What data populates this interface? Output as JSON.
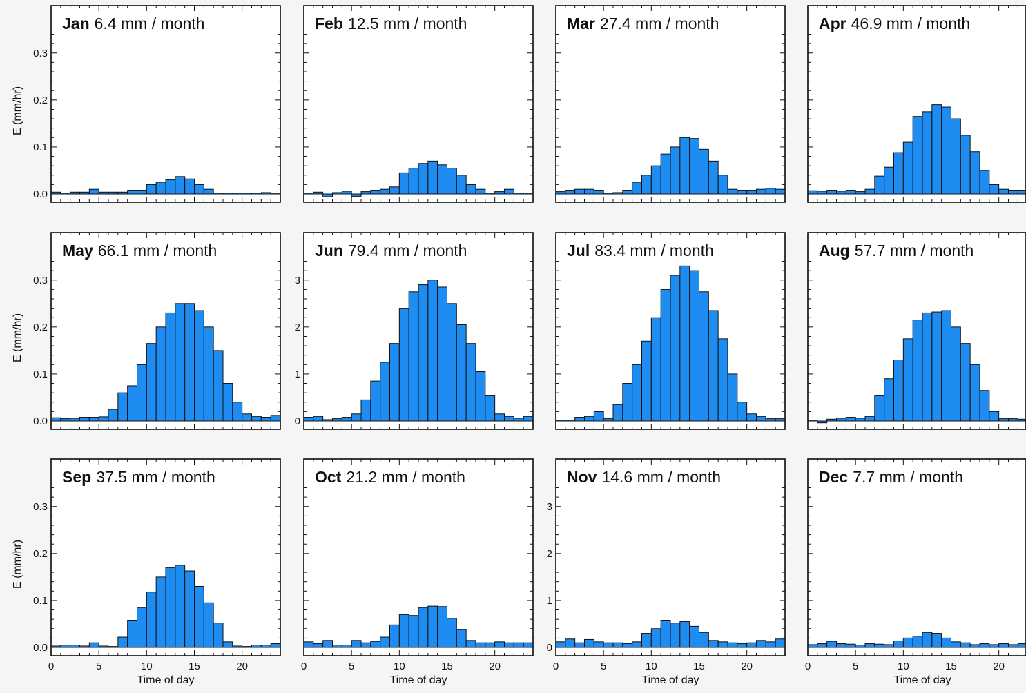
{
  "colors": {
    "bar": "#1e8cf0",
    "frame": "#111111",
    "panel_bg": "#ffffff"
  },
  "chart_data": [
    {
      "type": "bar",
      "month": "Jan",
      "total": "6.4 mm / month",
      "xlabel": "",
      "ylabel": "E (mm/hr)",
      "xlim": [
        0,
        24
      ],
      "ylim": [
        0,
        0.35
      ],
      "xticks": [],
      "yticks": [
        "0.0",
        "0.1",
        "0.2",
        "0.3"
      ],
      "values": [
        0.004,
        0.002,
        0.004,
        0.004,
        0.01,
        0.004,
        0.004,
        0.004,
        0.008,
        0.008,
        0.02,
        0.025,
        0.03,
        0.037,
        0.032,
        0.02,
        0.01,
        0.002,
        0.002,
        0.002,
        0.002,
        0.002,
        0.003,
        0.002
      ]
    },
    {
      "type": "bar",
      "month": "Feb",
      "total": "12.5 mm / month",
      "xlabel": "",
      "ylabel": "",
      "xlim": [
        0,
        24
      ],
      "ylim": [
        0,
        0.35
      ],
      "xticks": [],
      "yticks": [],
      "values": [
        0.002,
        0.004,
        -0.006,
        0.003,
        0.006,
        -0.005,
        0.005,
        0.008,
        0.01,
        0.015,
        0.045,
        0.055,
        0.065,
        0.07,
        0.062,
        0.055,
        0.04,
        0.02,
        0.01,
        0.002,
        0.005,
        0.01,
        0.002,
        0.002
      ]
    },
    {
      "type": "bar",
      "month": "Mar",
      "total": "27.4 mm / month",
      "xlabel": "",
      "ylabel": "",
      "xlim": [
        0,
        24
      ],
      "ylim": [
        0,
        0.35
      ],
      "xticks": [],
      "yticks": [],
      "values": [
        0.005,
        0.008,
        0.01,
        0.01,
        0.008,
        0.002,
        0.003,
        0.008,
        0.025,
        0.04,
        0.06,
        0.085,
        0.1,
        0.12,
        0.118,
        0.095,
        0.07,
        0.04,
        0.01,
        0.008,
        0.008,
        0.01,
        0.012,
        0.01
      ]
    },
    {
      "type": "bar",
      "month": "Apr",
      "total": "46.9 mm / month",
      "xlabel": "",
      "ylabel": "",
      "xlim": [
        0,
        24
      ],
      "ylim": [
        0,
        0.35
      ],
      "xticks": [],
      "yticks": [],
      "values": [
        0.007,
        0.006,
        0.008,
        0.006,
        0.008,
        0.005,
        0.01,
        0.038,
        0.057,
        0.088,
        0.11,
        0.165,
        0.175,
        0.19,
        0.185,
        0.16,
        0.125,
        0.09,
        0.05,
        0.02,
        0.01,
        0.008,
        0.008,
        0.006
      ]
    },
    {
      "type": "bar",
      "month": "May",
      "total": "66.1 mm / month",
      "xlabel": "",
      "ylabel": "E (mm/hr)",
      "xlim": [
        0,
        24
      ],
      "ylim": [
        0,
        0.35
      ],
      "xticks": [],
      "yticks": [
        "0.0",
        "0.1",
        "0.2",
        "0.3"
      ],
      "values": [
        0.007,
        0.005,
        0.006,
        0.008,
        0.008,
        0.009,
        0.025,
        0.06,
        0.075,
        0.12,
        0.165,
        0.2,
        0.23,
        0.25,
        0.25,
        0.235,
        0.2,
        0.15,
        0.08,
        0.04,
        0.015,
        0.01,
        0.008,
        0.012
      ]
    },
    {
      "type": "bar",
      "month": "Jun",
      "total": "79.4 mm / month",
      "xlabel": "",
      "ylabel": "",
      "xlim": [
        0,
        24
      ],
      "ylim": [
        0,
        3.5
      ],
      "xticks": [],
      "yticks": [
        "0",
        "1",
        "2",
        "3"
      ],
      "values": [
        0.08,
        0.1,
        0.03,
        0.05,
        0.08,
        0.15,
        0.45,
        0.85,
        1.25,
        1.65,
        2.4,
        2.75,
        2.9,
        3.0,
        2.85,
        2.5,
        2.05,
        1.65,
        1.05,
        0.55,
        0.15,
        0.1,
        0.06,
        0.1
      ]
    },
    {
      "type": "bar",
      "month": "Jul",
      "total": "83.4 mm / month",
      "xlabel": "",
      "ylabel": "",
      "xlim": [
        0,
        24
      ],
      "ylim": [
        0,
        3.5
      ],
      "xticks": [],
      "yticks": [],
      "values": [
        0.02,
        0.02,
        0.08,
        0.1,
        0.2,
        0.05,
        0.35,
        0.8,
        1.2,
        1.7,
        2.2,
        2.8,
        3.1,
        3.3,
        3.2,
        2.75,
        2.35,
        1.75,
        1.0,
        0.4,
        0.15,
        0.1,
        0.05,
        0.05
      ]
    },
    {
      "type": "bar",
      "month": "Aug",
      "total": "57.7 mm / month",
      "xlabel": "",
      "ylabel": "",
      "xlim": [
        0,
        24
      ],
      "ylim": [
        0,
        0.35
      ],
      "xticks": [],
      "yticks": [],
      "values": [
        0.002,
        -0.004,
        0.004,
        0.006,
        0.008,
        0.006,
        0.01,
        0.055,
        0.09,
        0.13,
        0.175,
        0.215,
        0.23,
        0.232,
        0.235,
        0.2,
        0.165,
        0.12,
        0.065,
        0.02,
        0.005,
        0.005,
        0.004,
        0.004
      ]
    },
    {
      "type": "bar",
      "month": "Sep",
      "total": "37.5 mm / month",
      "xlabel": "Time of day",
      "ylabel": "E (mm/hr)",
      "xlim": [
        0,
        24
      ],
      "ylim": [
        0,
        0.35
      ],
      "xticks": [
        "0",
        "5",
        "10",
        "15",
        "20"
      ],
      "yticks": [
        "0.0",
        "0.1",
        "0.2",
        "0.3"
      ],
      "values": [
        0.003,
        0.005,
        0.005,
        0.003,
        0.01,
        0.003,
        0.002,
        0.022,
        0.058,
        0.085,
        0.118,
        0.15,
        0.17,
        0.175,
        0.163,
        0.13,
        0.095,
        0.052,
        0.012,
        0.003,
        0.002,
        0.005,
        0.005,
        0.008
      ]
    },
    {
      "type": "bar",
      "month": "Oct",
      "total": "21.2 mm / month",
      "xlabel": "Time of day",
      "ylabel": "",
      "xlim": [
        0,
        24
      ],
      "ylim": [
        0,
        0.35
      ],
      "xticks": [
        "0",
        "5",
        "10",
        "15",
        "20"
      ],
      "yticks": [],
      "values": [
        0.012,
        0.008,
        0.015,
        0.005,
        0.005,
        0.015,
        0.01,
        0.013,
        0.022,
        0.048,
        0.07,
        0.068,
        0.085,
        0.088,
        0.087,
        0.062,
        0.038,
        0.015,
        0.01,
        0.01,
        0.012,
        0.01,
        0.01,
        0.01
      ]
    },
    {
      "type": "bar",
      "month": "Nov",
      "total": "14.6 mm / month",
      "xlabel": "Time of day",
      "ylabel": "",
      "xlim": [
        0,
        24
      ],
      "ylim": [
        0,
        3.5
      ],
      "xticks": [
        "0",
        "5",
        "10",
        "15",
        "20"
      ],
      "yticks": [
        "0",
        "1",
        "2",
        "3"
      ],
      "values": [
        0.12,
        0.18,
        0.1,
        0.17,
        0.12,
        0.1,
        0.1,
        0.08,
        0.12,
        0.3,
        0.4,
        0.58,
        0.52,
        0.55,
        0.45,
        0.32,
        0.15,
        0.12,
        0.1,
        0.08,
        0.1,
        0.15,
        0.12,
        0.18
      ]
    },
    {
      "type": "bar",
      "month": "Dec",
      "total": "7.7 mm / month",
      "xlabel": "Time of day",
      "ylabel": "",
      "xlim": [
        0,
        24
      ],
      "ylim": [
        0,
        0.35
      ],
      "xticks": [
        "0",
        "5",
        "10",
        "15",
        "20"
      ],
      "yticks": [],
      "values": [
        0.006,
        0.008,
        0.013,
        0.008,
        0.007,
        0.005,
        0.008,
        0.007,
        0.006,
        0.014,
        0.02,
        0.024,
        0.032,
        0.03,
        0.02,
        0.012,
        0.01,
        0.006,
        0.008,
        0.006,
        0.008,
        0.006,
        0.008,
        0.01
      ]
    }
  ]
}
